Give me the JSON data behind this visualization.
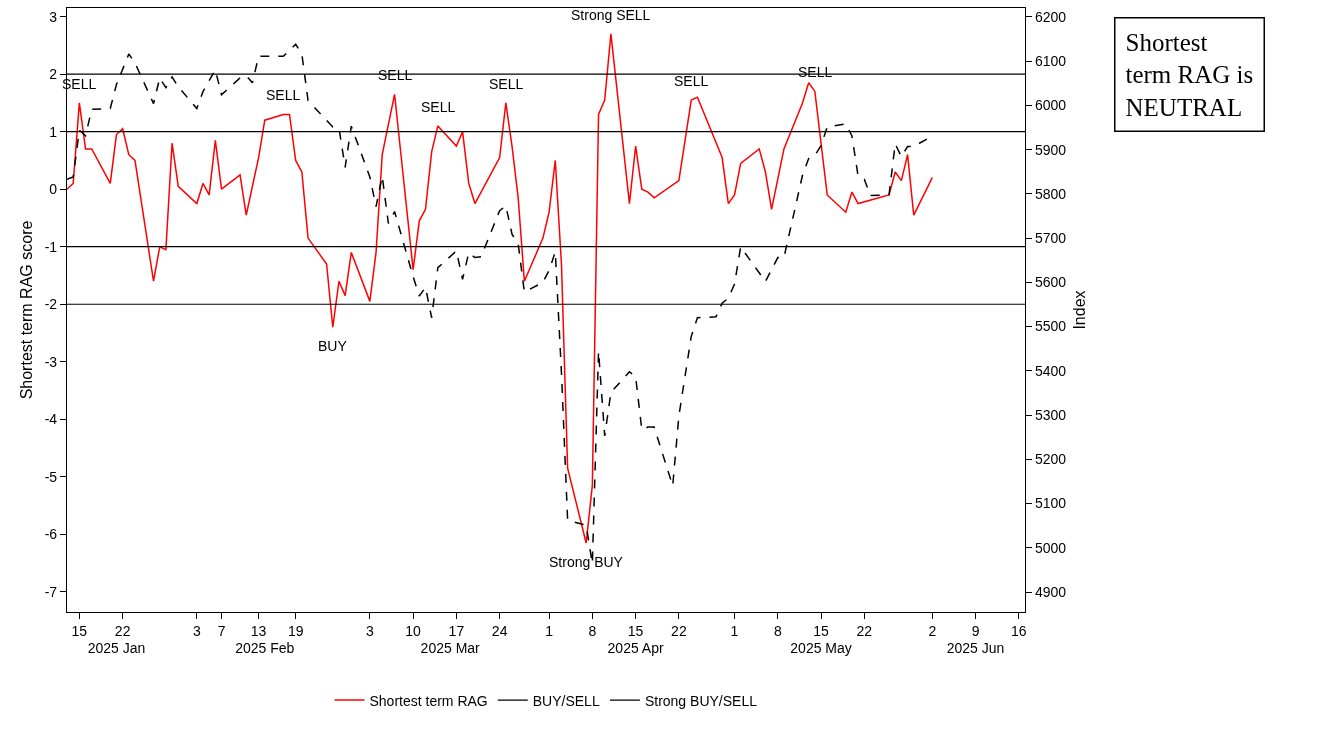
{
  "chart_data": {
    "type": "line",
    "ylabel": "Shortest term RAG score",
    "y2label": "Index",
    "xlim": [
      "2025-01-13",
      "2025-06-17"
    ],
    "xticks": [
      {
        "value": "2025-01-15",
        "label": "15"
      },
      {
        "value": "2025-01-22",
        "label": "22"
      },
      {
        "value": "2025-02-03",
        "label": "3"
      },
      {
        "value": "2025-02-07",
        "label": "7"
      },
      {
        "value": "2025-02-13",
        "label": "13"
      },
      {
        "value": "2025-02-19",
        "label": "19"
      },
      {
        "value": "2025-03-03",
        "label": "3"
      },
      {
        "value": "2025-03-10",
        "label": "10"
      },
      {
        "value": "2025-03-17",
        "label": "17"
      },
      {
        "value": "2025-03-24",
        "label": "24"
      },
      {
        "value": "2025-04-01",
        "label": "1"
      },
      {
        "value": "2025-04-08",
        "label": "8"
      },
      {
        "value": "2025-04-15",
        "label": "15"
      },
      {
        "value": "2025-04-22",
        "label": "22"
      },
      {
        "value": "2025-05-01",
        "label": "1"
      },
      {
        "value": "2025-05-08",
        "label": "8"
      },
      {
        "value": "2025-05-15",
        "label": "15"
      },
      {
        "value": "2025-05-22",
        "label": "22"
      },
      {
        "value": "2025-06-02",
        "label": "2"
      },
      {
        "value": "2025-06-09",
        "label": "9"
      },
      {
        "value": "2025-06-16",
        "label": "16"
      }
    ],
    "ylim": [
      -7.35,
      3.15
    ],
    "yticks": [
      -7,
      -6,
      -5,
      -4,
      -3,
      -2,
      -1,
      0,
      1,
      2,
      3
    ],
    "y2lim": [
      4855,
      6220
    ],
    "y2ticks": [
      4900,
      5000,
      5100,
      5200,
      5300,
      5400,
      5500,
      5600,
      5700,
      5800,
      5900,
      6000,
      6100,
      6200
    ],
    "x2lim": [
      "2025-01-13",
      "2025-06-17"
    ],
    "x2ticks": [
      {
        "value": "2025-01-21",
        "label": "2025 Jan"
      },
      {
        "value": "2025-02-14",
        "label": "2025 Feb"
      },
      {
        "value": "2025-03-16",
        "label": "2025 Mar"
      },
      {
        "value": "2025-04-15",
        "label": "2025 Apr"
      },
      {
        "value": "2025-05-15",
        "label": "2025 May"
      },
      {
        "value": "2025-06-09",
        "label": "2025 Jun"
      }
    ],
    "legend": "bottom",
    "marker": "none",
    "series": [
      {
        "name": "Shortest term RAG",
        "color": "#ff0000",
        "line_style": "solid",
        "x": [
          "2025-01-13",
          "2025-01-14",
          "2025-01-15",
          "2025-01-16",
          "2025-01-17",
          "2025-01-20",
          "2025-01-21",
          "2025-01-22",
          "2025-01-23",
          "2025-01-24",
          "2025-01-27",
          "2025-01-28",
          "2025-01-29",
          "2025-01-30",
          "2025-01-31",
          "2025-02-03",
          "2025-02-04",
          "2025-02-05",
          "2025-02-06",
          "2025-02-07",
          "2025-02-10",
          "2025-02-11",
          "2025-02-13",
          "2025-02-14",
          "2025-02-17",
          "2025-02-18",
          "2025-02-19",
          "2025-02-20",
          "2025-02-21",
          "2025-02-24",
          "2025-02-25",
          "2025-02-26",
          "2025-02-27",
          "2025-02-28",
          "2025-03-03",
          "2025-03-04",
          "2025-03-05",
          "2025-03-07",
          "2025-03-10",
          "2025-03-11",
          "2025-03-12",
          "2025-03-13",
          "2025-03-14",
          "2025-03-17",
          "2025-03-18",
          "2025-03-19",
          "2025-03-20",
          "2025-03-21",
          "2025-03-24",
          "2025-03-25",
          "2025-03-26",
          "2025-03-27",
          "2025-03-28",
          "2025-03-31",
          "2025-04-01",
          "2025-04-02",
          "2025-04-03",
          "2025-04-04",
          "2025-04-07",
          "2025-04-08",
          "2025-04-09",
          "2025-04-10",
          "2025-04-11",
          "2025-04-14",
          "2025-04-15",
          "2025-04-16",
          "2025-04-17",
          "2025-04-18",
          "2025-04-22",
          "2025-04-24",
          "2025-04-25",
          "2025-04-29",
          "2025-04-30",
          "2025-05-01",
          "2025-05-02",
          "2025-05-05",
          "2025-05-06",
          "2025-05-07",
          "2025-05-09",
          "2025-05-12",
          "2025-05-13",
          "2025-05-14",
          "2025-05-16",
          "2025-05-19",
          "2025-05-20",
          "2025-05-21",
          "2025-05-26",
          "2025-05-27",
          "2025-05-28",
          "2025-05-29",
          "2025-05-30",
          "2025-06-02"
        ],
        "values": [
          0.0,
          0.1,
          1.5,
          0.7,
          0.7,
          0.1,
          0.95,
          1.05,
          0.6,
          0.5,
          -1.6,
          -1.0,
          -1.05,
          0.8,
          0.05,
          -0.25,
          0.1,
          -0.1,
          0.85,
          0.0,
          0.25,
          -0.45,
          0.55,
          1.2,
          1.3,
          1.3,
          0.5,
          0.3,
          -0.85,
          -1.3,
          -2.4,
          -1.6,
          -1.85,
          -1.1,
          -1.95,
          -1.1,
          0.6,
          1.65,
          -1.4,
          -0.55,
          -0.35,
          0.65,
          1.1,
          0.75,
          1.0,
          0.1,
          -0.25,
          -0.05,
          0.55,
          1.5,
          0.75,
          -0.15,
          -1.6,
          -0.85,
          -0.4,
          0.5,
          -1.3,
          -4.85,
          -6.15,
          -5.15,
          1.3,
          1.55,
          2.7,
          -0.25,
          0.75,
          0.0,
          -0.05,
          -0.15,
          0.15,
          1.55,
          1.6,
          0.55,
          -0.25,
          -0.1,
          0.45,
          0.7,
          0.3,
          -0.35,
          0.7,
          1.5,
          1.85,
          1.7,
          -0.1,
          -0.4,
          -0.05,
          -0.25,
          -0.1,
          0.3,
          0.15,
          0.6,
          -0.45,
          0.2
        ]
      },
      {
        "color": "#000000",
        "line_style": "dashed",
        "axis": "y2",
        "x": [
          "2025-01-13",
          "2025-01-14",
          "2025-01-15",
          "2025-01-16",
          "2025-01-17",
          "2025-01-20",
          "2025-01-21",
          "2025-01-23",
          "2025-01-24",
          "2025-01-27",
          "2025-01-28",
          "2025-01-29",
          "2025-01-30",
          "2025-01-31",
          "2025-02-03",
          "2025-02-04",
          "2025-02-05",
          "2025-02-06",
          "2025-02-07",
          "2025-02-10",
          "2025-02-11",
          "2025-02-12",
          "2025-02-13",
          "2025-02-17",
          "2025-02-19",
          "2025-02-20",
          "2025-02-21",
          "2025-02-25",
          "2025-02-26",
          "2025-02-27",
          "2025-02-28",
          "2025-03-03",
          "2025-03-04",
          "2025-03-05",
          "2025-03-06",
          "2025-03-07",
          "2025-03-10",
          "2025-03-11",
          "2025-03-12",
          "2025-03-13",
          "2025-03-14",
          "2025-03-17",
          "2025-03-18",
          "2025-03-19",
          "2025-03-20",
          "2025-03-21",
          "2025-03-24",
          "2025-03-25",
          "2025-03-26",
          "2025-03-27",
          "2025-03-28",
          "2025-03-31",
          "2025-04-01",
          "2025-04-02",
          "2025-04-03",
          "2025-04-04",
          "2025-04-07",
          "2025-04-08",
          "2025-04-09",
          "2025-04-10",
          "2025-04-11",
          "2025-04-14",
          "2025-04-15",
          "2025-04-16",
          "2025-04-17",
          "2025-04-18",
          "2025-04-21",
          "2025-04-22",
          "2025-04-24",
          "2025-04-25",
          "2025-04-28",
          "2025-04-29",
          "2025-04-30",
          "2025-05-01",
          "2025-05-02",
          "2025-05-06",
          "2025-05-08",
          "2025-05-09",
          "2025-05-12",
          "2025-05-13",
          "2025-05-14",
          "2025-05-15",
          "2025-05-16",
          "2025-05-19",
          "2025-05-20",
          "2025-05-21",
          "2025-05-22",
          "2025-05-23",
          "2025-05-26",
          "2025-05-27",
          "2025-05-28",
          "2025-05-29",
          "2025-05-30",
          "2025-06-02"
        ],
        "values": [
          5833,
          5838,
          5944,
          5931,
          5991,
          5993,
          6047,
          6116,
          6096,
          6004,
          6062,
          6040,
          6064,
          6042,
          5993,
          6031,
          6056,
          6080,
          6024,
          6062,
          6067,
          6051,
          6111,
          6111,
          6138,
          6116,
          6011,
          5951,
          5949,
          5860,
          5953,
          5838,
          5771,
          5840,
          5733,
          5760,
          5613,
          5569,
          5589,
          5520,
          5633,
          5671,
          5607,
          5667,
          5656,
          5658,
          5762,
          5773,
          5709,
          5687,
          5578,
          5600,
          5627,
          5669,
          5396,
          5062,
          5051,
          4964,
          5444,
          5253,
          5351,
          5398,
          5387,
          5267,
          5273,
          5273,
          5140,
          5298,
          5478,
          5520,
          5522,
          5553,
          5564,
          5596,
          5680,
          5602,
          5656,
          5656,
          5842,
          5880,
          5887,
          5909,
          5951,
          5958,
          5931,
          5840,
          5833,
          5796,
          5798,
          5913,
          5884,
          5907,
          5907,
          5931
        ]
      }
    ],
    "ref_lines": [
      {
        "axis": "y",
        "value": 1,
        "label": "BUY/SELL",
        "color": "#000000"
      },
      {
        "axis": "y",
        "value": -1,
        "color": "#000000"
      },
      {
        "axis": "y",
        "value": 2,
        "label": "Strong BUY/SELL",
        "color": "#000000"
      },
      {
        "axis": "y",
        "value": -2,
        "color": "#000000"
      }
    ],
    "annotations": [
      {
        "text": "SELL",
        "x": "2025-01-15",
        "y": 1.5
      },
      {
        "text": "SELL",
        "x": "2025-02-17",
        "y": 1.3
      },
      {
        "text": "BUY",
        "x": "2025-02-25",
        "y": -2.4
      },
      {
        "text": "SELL",
        "x": "2025-03-07",
        "y": 1.65
      },
      {
        "text": "SELL",
        "x": "2025-03-14",
        "y": 1.1
      },
      {
        "text": "SELL",
        "x": "2025-03-25",
        "y": 1.5
      },
      {
        "text": "Strong SELL",
        "x": "2025-04-11",
        "y": 2.7
      },
      {
        "text": "Strong BUY",
        "x": "2025-04-07",
        "y": -6.15
      },
      {
        "text": "SELL",
        "x": "2025-04-24",
        "y": 1.55
      },
      {
        "text": "SELL",
        "x": "2025-05-14",
        "y": 1.7
      },
      "Shortest\nterm RAG is\nNEUTRAL"
    ]
  }
}
